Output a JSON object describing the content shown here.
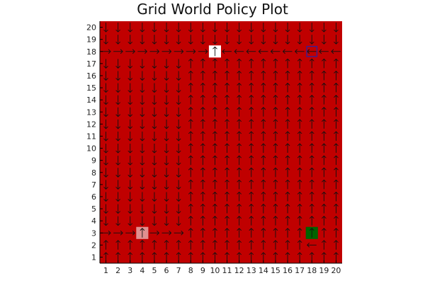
{
  "chart_data": {
    "type": "heatmap",
    "title": "Grid World Policy Plot",
    "xlabel": "",
    "ylabel": "",
    "grid_size": [
      20,
      20
    ],
    "x_ticks": [
      1,
      2,
      3,
      4,
      5,
      6,
      7,
      8,
      9,
      10,
      11,
      12,
      13,
      14,
      15,
      16,
      17,
      18,
      19,
      20
    ],
    "y_ticks": [
      1,
      2,
      3,
      4,
      5,
      6,
      7,
      8,
      9,
      10,
      11,
      12,
      13,
      14,
      15,
      16,
      17,
      18,
      19,
      20
    ],
    "xlim": [
      0.5,
      20.5
    ],
    "ylim": [
      0.5,
      20.5
    ],
    "grid": false,
    "background_value_color": "#C00000",
    "highlighted_cells": [
      {
        "x": 10,
        "y": 18,
        "color": "#FFFFFF",
        "action": "up"
      },
      {
        "x": 4,
        "y": 3,
        "color": "#E09090",
        "action": "up"
      },
      {
        "x": 18,
        "y": 3,
        "color": "#006400",
        "action": "up"
      }
    ],
    "marker_cells": [
      {
        "x": 18,
        "y": 18,
        "color": "#3020A0",
        "shape": "square-outline"
      }
    ],
    "policy_rules": {
      "row_18": {
        "x_1_to_9": "right",
        "x_11_to_20": "left"
      },
      "row_3": {
        "x_1_to_7": "right",
        "x_8_to_20": "up"
      },
      "row_2": {
        "x_18": "left"
      },
      "row_20": "down",
      "row_19": "down",
      "above_18_down_columns": "all",
      "rows_4_to_17": {
        "x_1_to_7": "down",
        "x_8_to_20": "up"
      },
      "rows_1_to_2": "up",
      "columns_right_of_7_rows_4_to_17": "up"
    },
    "colors": {
      "field": "#C00000",
      "arrow": "#111111",
      "axis": "#000000"
    }
  }
}
